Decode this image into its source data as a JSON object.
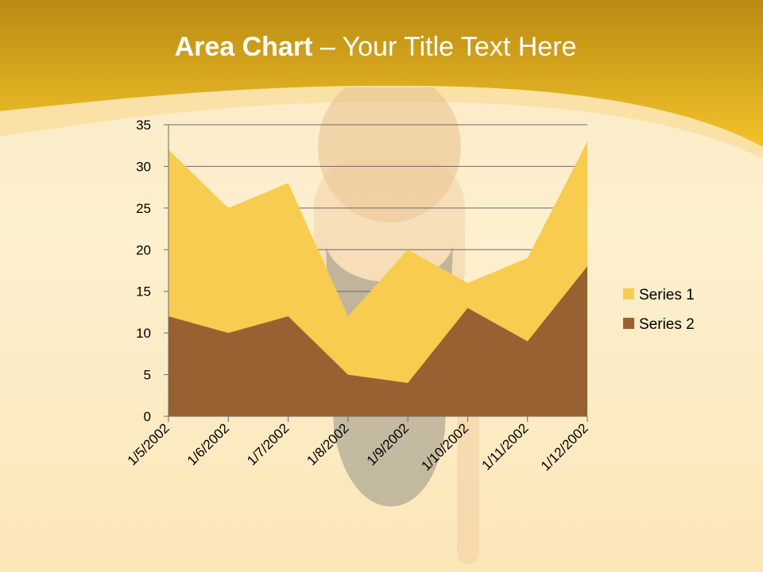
{
  "slide": {
    "title_bold": "Area Chart",
    "title_rest": " – Your Title Text Here"
  },
  "colors": {
    "banner_top": "#b98a12",
    "banner_bottom": "#f3c32a",
    "series1": "#f7cc4f",
    "series2": "#996131",
    "gridline": "#6b6b6b"
  },
  "chart_data": {
    "type": "area",
    "categories": [
      "1/5/2002",
      "1/6/2002",
      "1/7/2002",
      "1/8/2002",
      "1/9/2002",
      "1/10/2002",
      "1/11/2002",
      "1/12/2002"
    ],
    "series": [
      {
        "name": "Series 1",
        "values": [
          32,
          25,
          28,
          12,
          20,
          16,
          19,
          33
        ]
      },
      {
        "name": "Series 2",
        "values": [
          12,
          10,
          12,
          5,
          4,
          13,
          9,
          18
        ]
      }
    ],
    "yticks": [
      "0",
      "5",
      "10",
      "15",
      "20",
      "25",
      "30",
      "35"
    ],
    "ylim": [
      0,
      35
    ],
    "grid": true,
    "legend": "right"
  }
}
